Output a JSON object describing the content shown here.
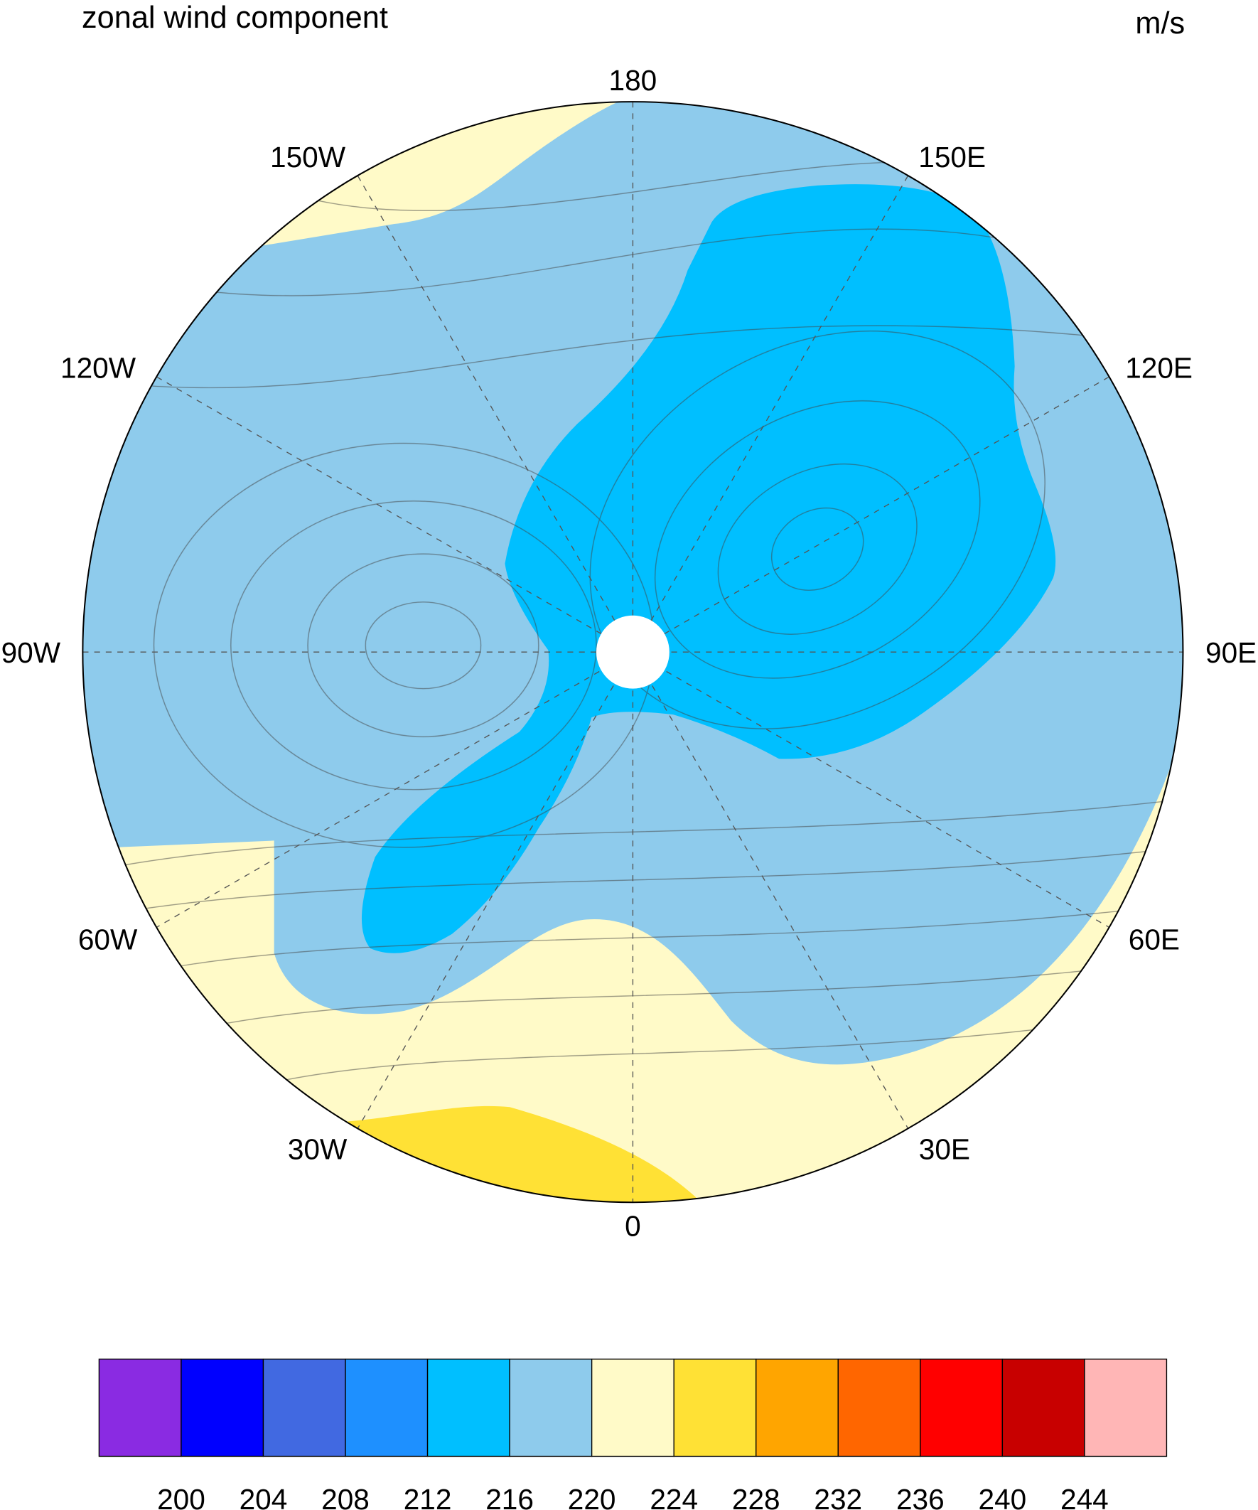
{
  "map": {
    "title": "zonal wind component",
    "units": "m/s",
    "lon_labels": [
      "180",
      "150E",
      "120E",
      "90E",
      "60E",
      "30E",
      "0",
      "30W",
      "60W",
      "90W",
      "120W",
      "150W"
    ],
    "colorbar": {
      "labels": [
        "200",
        "204",
        "208",
        "212",
        "216",
        "220",
        "224",
        "228",
        "232",
        "236",
        "240",
        "244"
      ],
      "colors": [
        "#8a2be2",
        "#0000ff",
        "#4169e1",
        "#1e90ff",
        "#00bfff",
        "#8ecbec",
        "#fffac8",
        "#ffe135",
        "#ffa500",
        "#ff6600",
        "#ff0000",
        "#c80000",
        "#ffb6b6"
      ]
    }
  }
}
